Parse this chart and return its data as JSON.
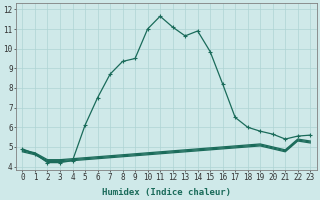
{
  "xlabel": "Humidex (Indice chaleur)",
  "bg_color": "#cfe9e9",
  "grid_color": "#aed4d4",
  "line_color": "#1a6b5a",
  "xlim": [
    -0.5,
    23.5
  ],
  "ylim": [
    3.85,
    12.3
  ],
  "yticks": [
    4,
    5,
    6,
    7,
    8,
    9,
    10,
    11,
    12
  ],
  "xticks": [
    0,
    1,
    2,
    3,
    4,
    5,
    6,
    7,
    8,
    9,
    10,
    11,
    12,
    13,
    14,
    15,
    16,
    17,
    18,
    19,
    20,
    21,
    22,
    23
  ],
  "main_series": {
    "x": [
      0,
      1,
      2,
      3,
      4,
      5,
      6,
      7,
      8,
      9,
      10,
      11,
      12,
      13,
      14,
      15,
      16,
      17,
      18,
      19,
      20,
      21,
      22,
      23
    ],
    "y": [
      4.9,
      4.65,
      4.2,
      4.2,
      4.3,
      6.1,
      7.5,
      8.7,
      9.35,
      9.5,
      11.0,
      11.65,
      11.1,
      10.65,
      10.9,
      9.85,
      8.2,
      6.5,
      6.0,
      5.8,
      5.65,
      5.4,
      5.55,
      5.6
    ]
  },
  "flat_series": [
    [
      4.75,
      4.6,
      4.25,
      4.25,
      4.3,
      4.35,
      4.4,
      4.45,
      4.5,
      4.55,
      4.6,
      4.65,
      4.7,
      4.75,
      4.8,
      4.85,
      4.9,
      4.95,
      5.0,
      5.05,
      4.9,
      4.75,
      5.3,
      5.2
    ],
    [
      4.8,
      4.65,
      4.3,
      4.3,
      4.35,
      4.4,
      4.45,
      4.5,
      4.55,
      4.6,
      4.65,
      4.7,
      4.75,
      4.8,
      4.85,
      4.9,
      4.95,
      5.0,
      5.05,
      5.1,
      4.95,
      4.8,
      5.35,
      5.25
    ],
    [
      4.85,
      4.7,
      4.35,
      4.35,
      4.4,
      4.45,
      4.5,
      4.55,
      4.6,
      4.65,
      4.7,
      4.75,
      4.8,
      4.85,
      4.9,
      4.95,
      5.0,
      5.05,
      5.1,
      5.15,
      5.0,
      4.85,
      5.4,
      5.3
    ]
  ],
  "marker_size": 2.5,
  "line_width": 0.9,
  "font_size_label": 6.5,
  "font_size_tick": 5.5
}
